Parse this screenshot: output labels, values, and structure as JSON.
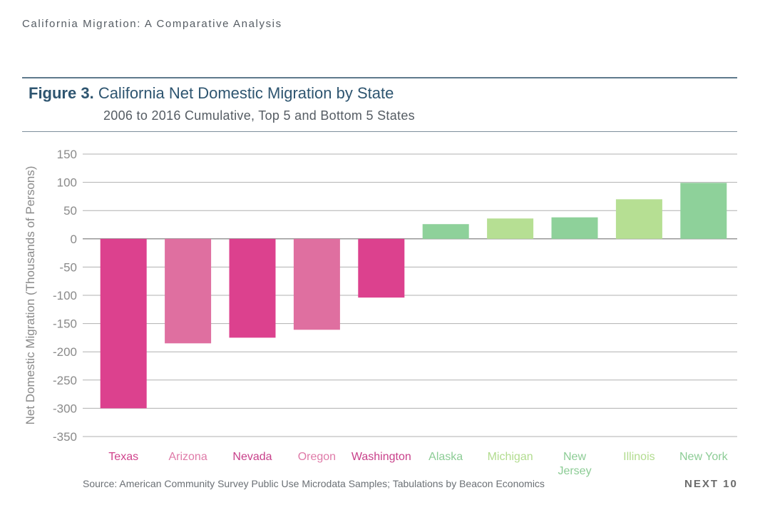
{
  "header": "California Migration: A Comparative Analysis",
  "figure_label": "Figure 3.",
  "figure_title": "California Net Domestic Migration by State",
  "figure_subtitle": "2006 to 2016 Cumulative, Top 5 and Bottom 5 States",
  "source": "Source: American Community Survey Public Use Microdata Samples; Tabulations by Beacon Economics",
  "brand": "NEXT 10",
  "chart_data": {
    "type": "bar",
    "title": "California Net Domestic Migration by State",
    "subtitle": "2006 to 2016 Cumulative, Top 5 and Bottom 5 States",
    "xlabel": "",
    "ylabel": "Net Domestic Migration (Thousands of Persons)",
    "ylim": [
      -350,
      150
    ],
    "yticks": [
      150,
      100,
      50,
      0,
      -50,
      -100,
      -150,
      -200,
      -250,
      -300,
      -350
    ],
    "grid": true,
    "categories": [
      "Texas",
      "Arizona",
      "Nevada",
      "Oregon",
      "Washington",
      "Alaska",
      "Michigan",
      "New Jersey",
      "Illinois",
      "New York"
    ],
    "values": [
      -300,
      -185,
      -175,
      -161,
      -104,
      26,
      36,
      38,
      70,
      99
    ],
    "colors": [
      "#dc418e",
      "#df6fa0",
      "#dc418e",
      "#df6fa0",
      "#dc418e",
      "#8ed19a",
      "#b6df93",
      "#8ed19a",
      "#b6df93",
      "#8ed19a"
    ],
    "label_colors": [
      "#d0438c",
      "#df7aa8",
      "#c8408a",
      "#df7aa8",
      "#c8408a",
      "#8ccc95",
      "#b2dc8f",
      "#8ccc95",
      "#b2dc8f",
      "#8ccc95"
    ]
  }
}
